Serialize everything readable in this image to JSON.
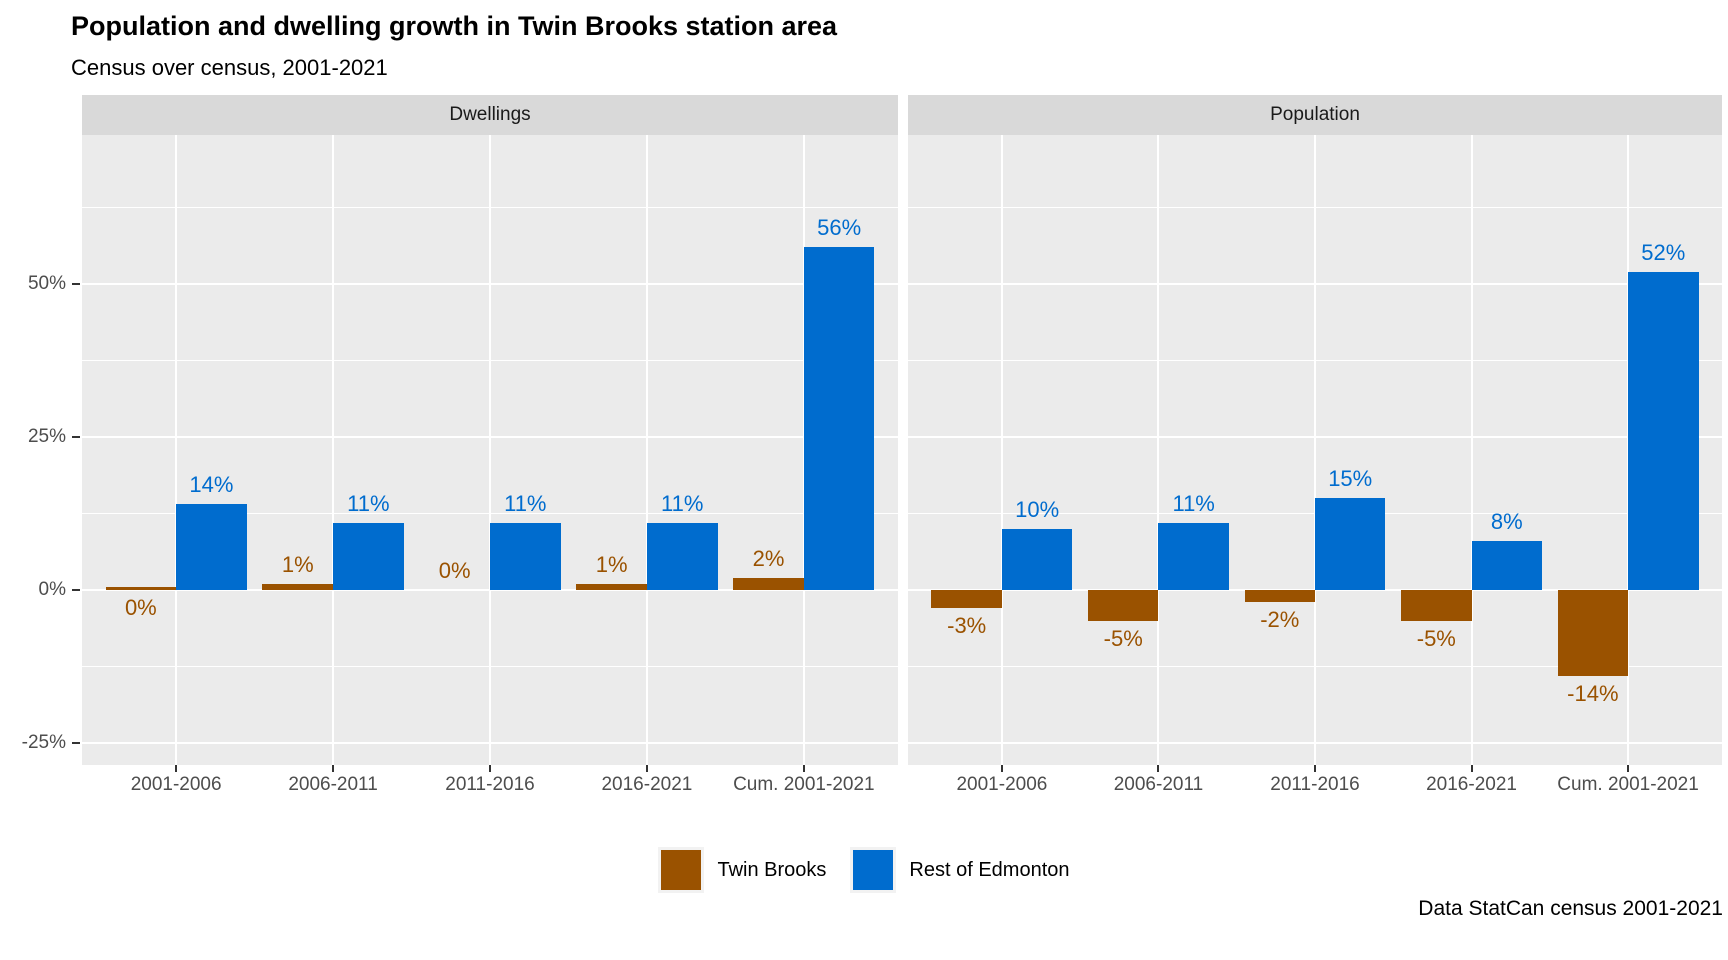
{
  "header": {
    "title": "Population and dwelling growth in Twin Brooks station area",
    "subtitle": "Census over census, 2001-2021"
  },
  "caption": {
    "text": "Data StatCan census 2001-2021"
  },
  "colors": {
    "twin_brooks": "#9A5200",
    "rest_of_edmonton": "#006CCE",
    "panel_bg": "#EBEBEB",
    "strip_bg": "#D9D9D9",
    "grid": "#FFFFFF",
    "axis_text": "#4D4D4D",
    "tick_mark": "#333333"
  },
  "legend": {
    "items": [
      {
        "label": "Twin Brooks",
        "color": "#9A5200"
      },
      {
        "label": "Rest of Edmonton",
        "color": "#006CCE"
      }
    ]
  },
  "chart_data": {
    "type": "bar",
    "title": "Population and dwelling growth in Twin Brooks station area",
    "subtitle": "Census over census, 2001-2021",
    "caption": "Data StatCan census 2001-2021",
    "categories": [
      "2001-2006",
      "2006-2011",
      "2011-2016",
      "2016-2021",
      "Cum. 2001-2021"
    ],
    "y_axis": {
      "unit": "percent",
      "tick_values": [
        -25,
        0,
        25,
        50
      ],
      "tick_labels": [
        "-25%",
        "0%",
        "25%",
        "50%"
      ],
      "minor_tick_values": [
        -12.5,
        12.5,
        37.5,
        62.5
      ],
      "range": [
        -28.6,
        74.3
      ],
      "grid": "on"
    },
    "legend_position": "bottom",
    "facets": [
      {
        "name": "Dwellings",
        "series": [
          {
            "name": "Twin Brooks",
            "color": "#9A5200",
            "bars": [
              {
                "v": 0,
                "label": "0%",
                "label_side": "below",
                "sliver": true
              },
              {
                "v": 1,
                "label": "1%"
              },
              {
                "v": 0,
                "label": "0%"
              },
              {
                "v": 1,
                "label": "1%"
              },
              {
                "v": 2,
                "label": "2%"
              }
            ]
          },
          {
            "name": "Rest of Edmonton",
            "color": "#006CCE",
            "bars": [
              {
                "v": 14,
                "label": "14%"
              },
              {
                "v": 11,
                "label": "11%"
              },
              {
                "v": 11,
                "label": "11%"
              },
              {
                "v": 11,
                "label": "11%"
              },
              {
                "v": 56,
                "label": "56%"
              }
            ]
          }
        ]
      },
      {
        "name": "Population",
        "series": [
          {
            "name": "Twin Brooks",
            "color": "#9A5200",
            "bars": [
              {
                "v": -3,
                "label": "-3%"
              },
              {
                "v": -5,
                "label": "-5%"
              },
              {
                "v": -2,
                "label": "-2%"
              },
              {
                "v": -5,
                "label": "-5%"
              },
              {
                "v": -14,
                "label": "-14%"
              }
            ]
          },
          {
            "name": "Rest of Edmonton",
            "color": "#006CCE",
            "bars": [
              {
                "v": 10,
                "label": "10%"
              },
              {
                "v": 11,
                "label": "11%"
              },
              {
                "v": 15,
                "label": "15%"
              },
              {
                "v": 8,
                "label": "8%"
              },
              {
                "v": 52,
                "label": "52%"
              }
            ]
          }
        ]
      }
    ]
  }
}
